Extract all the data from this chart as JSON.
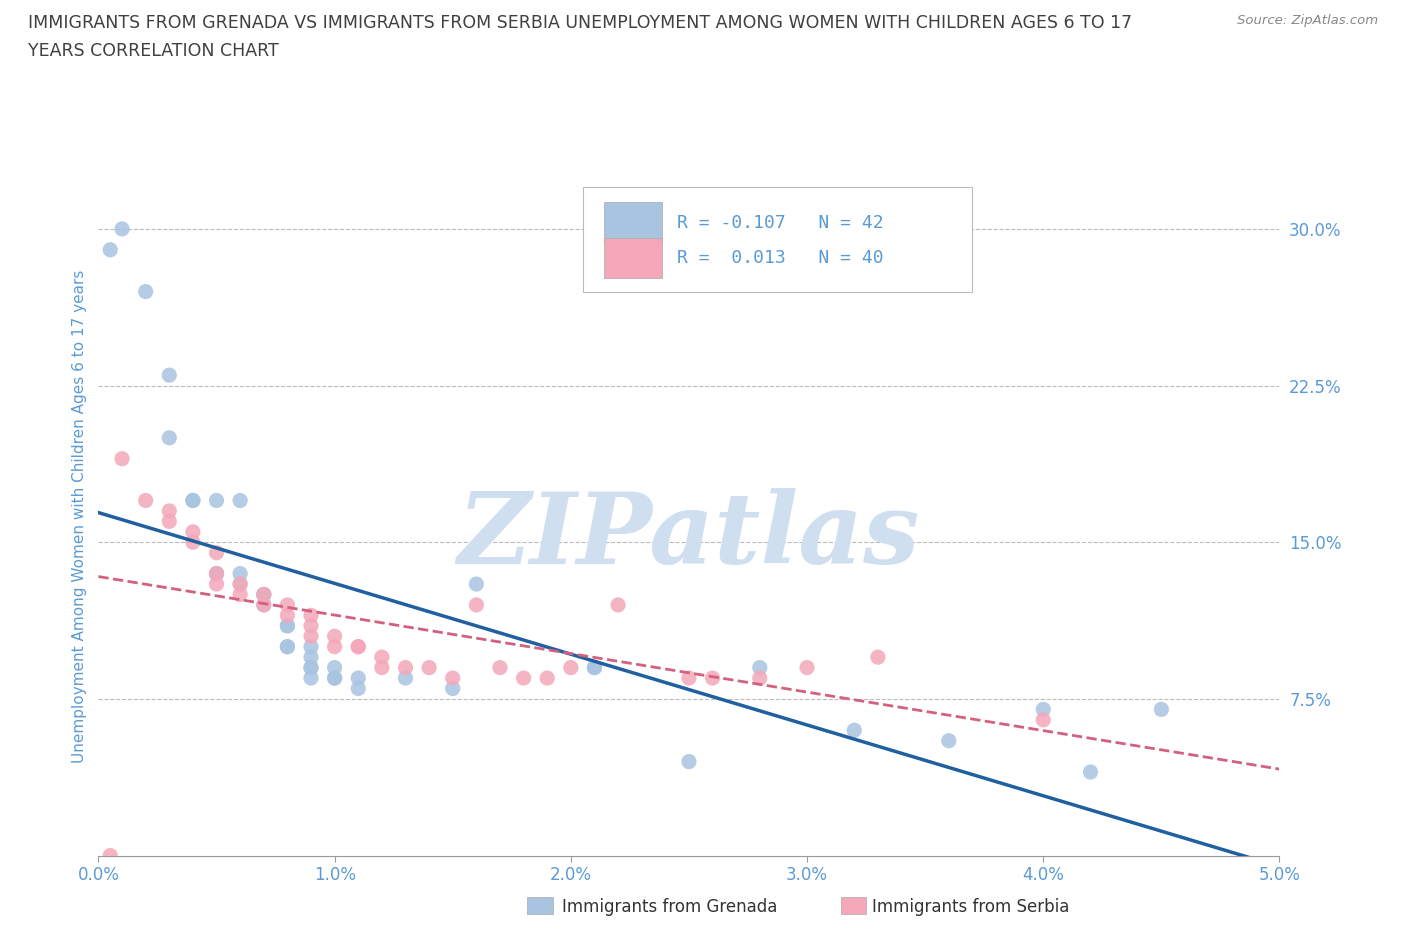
{
  "title_line1": "IMMIGRANTS FROM GRENADA VS IMMIGRANTS FROM SERBIA UNEMPLOYMENT AMONG WOMEN WITH CHILDREN AGES 6 TO 17",
  "title_line2": "YEARS CORRELATION CHART",
  "source": "Source: ZipAtlas.com",
  "ylabel": "Unemployment Among Women with Children Ages 6 to 17 years",
  "xlim": [
    0.0,
    0.05
  ],
  "ylim": [
    0.0,
    0.325
  ],
  "yticks": [
    0.075,
    0.15,
    0.225,
    0.3
  ],
  "ytick_labels": [
    "7.5%",
    "15.0%",
    "22.5%",
    "30.0%"
  ],
  "xticks": [
    0.0,
    0.01,
    0.02,
    0.03,
    0.04,
    0.05
  ],
  "xtick_labels": [
    "0.0%",
    "1.0%",
    "2.0%",
    "3.0%",
    "4.0%",
    "5.0%"
  ],
  "grenada_color": "#a8c4e0",
  "grenada_line_color": "#2060a0",
  "serbia_color": "#f4a7b9",
  "serbia_line_color": "#d46080",
  "grenada_R": -0.107,
  "grenada_N": 42,
  "serbia_R": 0.013,
  "serbia_N": 40,
  "watermark": "ZIPatlas",
  "watermark_color": "#d0dff0",
  "grid_color": "#bbbbbb",
  "title_color": "#404040",
  "axis_label_color": "#5b9bd5",
  "tick_label_color": "#5b9bd5",
  "grenada_x": [
    0.0005,
    0.001,
    0.002,
    0.003,
    0.003,
    0.004,
    0.004,
    0.005,
    0.005,
    0.005,
    0.006,
    0.006,
    0.006,
    0.007,
    0.007,
    0.007,
    0.008,
    0.008,
    0.008,
    0.008,
    0.009,
    0.009,
    0.009,
    0.009,
    0.009,
    0.01,
    0.01,
    0.01,
    0.011,
    0.011,
    0.013,
    0.015,
    0.016,
    0.021,
    0.021,
    0.025,
    0.028,
    0.032,
    0.036,
    0.04,
    0.042,
    0.045
  ],
  "grenada_y": [
    0.29,
    0.3,
    0.27,
    0.23,
    0.2,
    0.17,
    0.17,
    0.135,
    0.135,
    0.17,
    0.17,
    0.135,
    0.13,
    0.125,
    0.12,
    0.125,
    0.11,
    0.11,
    0.1,
    0.1,
    0.1,
    0.095,
    0.09,
    0.09,
    0.085,
    0.09,
    0.085,
    0.085,
    0.085,
    0.08,
    0.085,
    0.08,
    0.13,
    0.09,
    0.09,
    0.045,
    0.09,
    0.06,
    0.055,
    0.07,
    0.04,
    0.07
  ],
  "serbia_x": [
    0.0005,
    0.001,
    0.002,
    0.003,
    0.003,
    0.004,
    0.004,
    0.005,
    0.005,
    0.005,
    0.006,
    0.006,
    0.007,
    0.007,
    0.008,
    0.008,
    0.009,
    0.009,
    0.009,
    0.01,
    0.01,
    0.011,
    0.011,
    0.012,
    0.012,
    0.013,
    0.014,
    0.015,
    0.016,
    0.017,
    0.018,
    0.019,
    0.02,
    0.022,
    0.025,
    0.026,
    0.028,
    0.03,
    0.033,
    0.04
  ],
  "serbia_y": [
    0.0,
    0.19,
    0.17,
    0.165,
    0.16,
    0.155,
    0.15,
    0.145,
    0.135,
    0.13,
    0.13,
    0.125,
    0.125,
    0.12,
    0.12,
    0.115,
    0.115,
    0.11,
    0.105,
    0.105,
    0.1,
    0.1,
    0.1,
    0.095,
    0.09,
    0.09,
    0.09,
    0.085,
    0.12,
    0.09,
    0.085,
    0.085,
    0.09,
    0.12,
    0.085,
    0.085,
    0.085,
    0.09,
    0.095,
    0.065
  ]
}
